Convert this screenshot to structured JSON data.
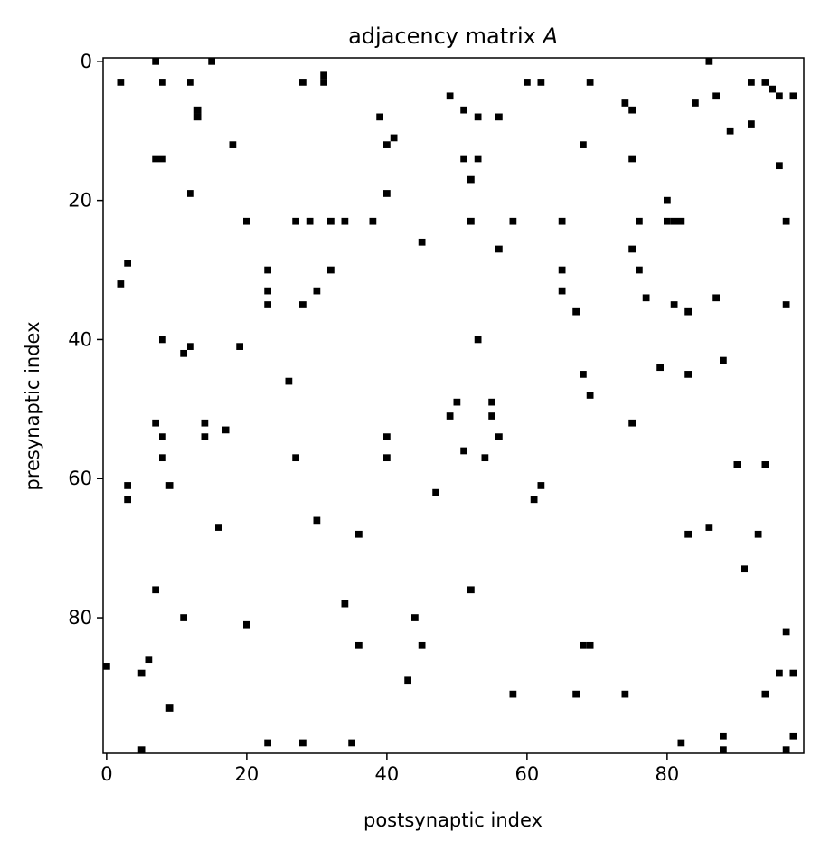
{
  "chart_data": {
    "type": "heatmap",
    "title_prefix": "adjacency matrix ",
    "title_symbol": "A",
    "xlabel": "postsynaptic index",
    "ylabel": "presynaptic index",
    "size": 100,
    "x_ticks": [
      0,
      20,
      40,
      60,
      80
    ],
    "y_ticks": [
      0,
      20,
      40,
      60,
      80
    ],
    "grid": false,
    "colors": {
      "connection": "#000000",
      "background": "#ffffff"
    },
    "cells": [
      [
        7,
        0
      ],
      [
        15,
        0
      ],
      [
        86,
        0
      ],
      [
        2,
        3
      ],
      [
        8,
        3
      ],
      [
        12,
        3
      ],
      [
        28,
        3
      ],
      [
        31,
        2
      ],
      [
        31,
        3
      ],
      [
        60,
        3
      ],
      [
        62,
        3
      ],
      [
        69,
        3
      ],
      [
        92,
        3
      ],
      [
        94,
        3
      ],
      [
        95,
        4
      ],
      [
        96,
        5
      ],
      [
        13,
        7
      ],
      [
        13,
        8
      ],
      [
        39,
        8
      ],
      [
        49,
        5
      ],
      [
        51,
        7
      ],
      [
        53,
        8
      ],
      [
        56,
        8
      ],
      [
        74,
        6
      ],
      [
        75,
        7
      ],
      [
        84,
        6
      ],
      [
        87,
        5
      ],
      [
        98,
        5
      ],
      [
        92,
        9
      ],
      [
        89,
        10
      ],
      [
        41,
        11
      ],
      [
        18,
        12
      ],
      [
        40,
        12
      ],
      [
        68,
        12
      ],
      [
        7,
        14
      ],
      [
        8,
        14
      ],
      [
        51,
        14
      ],
      [
        53,
        14
      ],
      [
        75,
        14
      ],
      [
        96,
        15
      ],
      [
        52,
        17
      ],
      [
        12,
        19
      ],
      [
        40,
        19
      ],
      [
        80,
        20
      ],
      [
        20,
        23
      ],
      [
        27,
        23
      ],
      [
        29,
        23
      ],
      [
        32,
        23
      ],
      [
        34,
        23
      ],
      [
        38,
        23
      ],
      [
        52,
        23
      ],
      [
        58,
        23
      ],
      [
        65,
        23
      ],
      [
        76,
        23
      ],
      [
        80,
        23
      ],
      [
        81,
        23
      ],
      [
        82,
        23
      ],
      [
        97,
        23
      ],
      [
        45,
        26
      ],
      [
        56,
        27
      ],
      [
        75,
        27
      ],
      [
        3,
        29
      ],
      [
        23,
        30
      ],
      [
        32,
        30
      ],
      [
        65,
        30
      ],
      [
        76,
        30
      ],
      [
        2,
        32
      ],
      [
        23,
        33
      ],
      [
        30,
        33
      ],
      [
        65,
        33
      ],
      [
        77,
        34
      ],
      [
        87,
        34
      ],
      [
        23,
        35
      ],
      [
        28,
        35
      ],
      [
        81,
        35
      ],
      [
        97,
        35
      ],
      [
        67,
        36
      ],
      [
        83,
        36
      ],
      [
        8,
        40
      ],
      [
        53,
        40
      ],
      [
        12,
        41
      ],
      [
        19,
        41
      ],
      [
        11,
        42
      ],
      [
        88,
        43
      ],
      [
        79,
        44
      ],
      [
        68,
        45
      ],
      [
        83,
        45
      ],
      [
        26,
        46
      ],
      [
        69,
        48
      ],
      [
        50,
        49
      ],
      [
        55,
        49
      ],
      [
        49,
        51
      ],
      [
        55,
        51
      ],
      [
        7,
        52
      ],
      [
        14,
        52
      ],
      [
        75,
        52
      ],
      [
        17,
        53
      ],
      [
        8,
        54
      ],
      [
        14,
        54
      ],
      [
        40,
        54
      ],
      [
        56,
        54
      ],
      [
        51,
        56
      ],
      [
        8,
        57
      ],
      [
        27,
        57
      ],
      [
        40,
        57
      ],
      [
        54,
        57
      ],
      [
        90,
        58
      ],
      [
        94,
        58
      ],
      [
        3,
        61
      ],
      [
        9,
        61
      ],
      [
        62,
        61
      ],
      [
        47,
        62
      ],
      [
        3,
        63
      ],
      [
        61,
        63
      ],
      [
        30,
        66
      ],
      [
        16,
        67
      ],
      [
        86,
        67
      ],
      [
        36,
        68
      ],
      [
        83,
        68
      ],
      [
        93,
        68
      ],
      [
        91,
        73
      ],
      [
        7,
        76
      ],
      [
        52,
        76
      ],
      [
        34,
        78
      ],
      [
        11,
        80
      ],
      [
        44,
        80
      ],
      [
        20,
        81
      ],
      [
        97,
        82
      ],
      [
        36,
        84
      ],
      [
        45,
        84
      ],
      [
        68,
        84
      ],
      [
        69,
        84
      ],
      [
        6,
        86
      ],
      [
        0,
        87
      ],
      [
        5,
        88
      ],
      [
        96,
        88
      ],
      [
        98,
        88
      ],
      [
        43,
        89
      ],
      [
        58,
        91
      ],
      [
        67,
        91
      ],
      [
        74,
        91
      ],
      [
        94,
        91
      ],
      [
        9,
        93
      ],
      [
        88,
        97
      ],
      [
        98,
        97
      ],
      [
        23,
        98
      ],
      [
        28,
        98
      ],
      [
        35,
        98
      ],
      [
        82,
        98
      ],
      [
        5,
        99
      ],
      [
        88,
        99
      ],
      [
        97,
        99
      ]
    ]
  }
}
